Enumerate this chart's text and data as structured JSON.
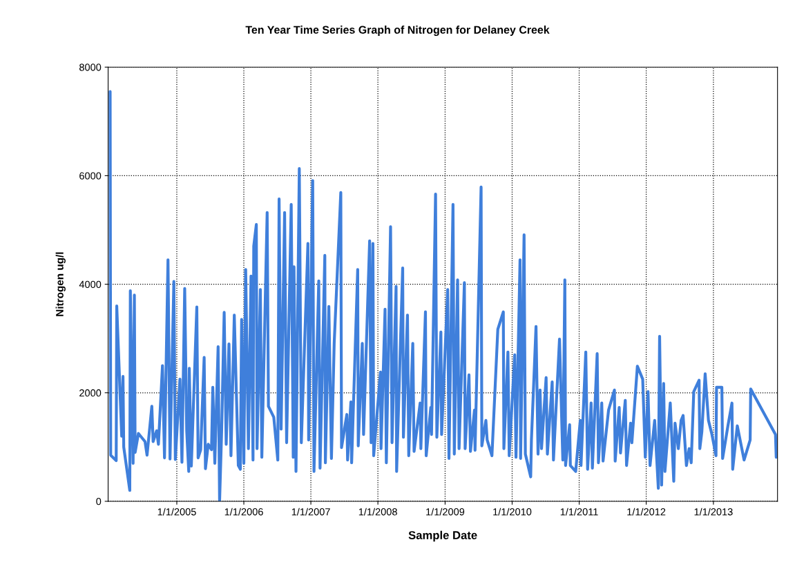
{
  "chart_data": {
    "type": "line",
    "title": "Ten Year Time Series Graph of Nitrogen for Delaney Creek",
    "xlabel": "Sample Date",
    "ylabel": "Nitrogen ug/l",
    "xlim": [
      "2003-12-24",
      "2013-12-16"
    ],
    "ylim": [
      0,
      8000
    ],
    "xticks": [
      {
        "value": "2005-01-01",
        "label": "1/1/2005"
      },
      {
        "value": "2006-01-01",
        "label": "1/1/2006"
      },
      {
        "value": "2007-01-01",
        "label": "1/1/2007"
      },
      {
        "value": "2008-01-01",
        "label": "1/1/2008"
      },
      {
        "value": "2009-01-01",
        "label": "1/1/2009"
      },
      {
        "value": "2010-01-01",
        "label": "1/1/2010"
      },
      {
        "value": "2011-01-01",
        "label": "1/1/2011"
      },
      {
        "value": "2012-01-01",
        "label": "1/1/2012"
      },
      {
        "value": "2013-01-01",
        "label": "1/1/2013"
      }
    ],
    "yticks": [
      0,
      2000,
      4000,
      6000,
      8000
    ],
    "grid": true,
    "marker": "none",
    "line_style": "solid",
    "series": [
      {
        "color": "#3f7fdb",
        "x": [
          "2004-01-04",
          "2004-01-07",
          "2004-02-06",
          "2004-02-09",
          "2004-03-07",
          "2004-03-14",
          "2004-03-18",
          "2004-04-20",
          "2004-04-23",
          "2004-05-08",
          "2004-05-15",
          "2004-05-19",
          "2004-06-06",
          "2004-07-12",
          "2004-07-23",
          "2004-08-18",
          "2004-08-25",
          "2004-09-13",
          "2004-09-23",
          "2004-10-15",
          "2004-10-26",
          "2004-11-14",
          "2004-11-25",
          "2004-12-16",
          "2004-12-24",
          "2005-01-18",
          "2005-01-29",
          "2005-02-13",
          "2005-02-24",
          "2005-03-07",
          "2005-03-10",
          "2005-03-21",
          "2005-04-20",
          "2005-04-27",
          "2005-05-11",
          "2005-05-30",
          "2005-06-06",
          "2005-06-21",
          "2005-07-09",
          "2005-07-16",
          "2005-07-27",
          "2005-08-14",
          "2005-08-22",
          "2005-09-02",
          "2005-09-16",
          "2005-09-27",
          "2005-10-12",
          "2005-10-23",
          "2005-11-10",
          "2005-12-02",
          "2005-12-13",
          "2005-12-20",
          "2006-01-01",
          "2006-01-11",
          "2006-01-26",
          "2006-02-09",
          "2006-02-20",
          "2006-02-24",
          "2006-03-10",
          "2006-03-14",
          "2006-04-01",
          "2006-04-09",
          "2006-05-08",
          "2006-05-15",
          "2006-06-13",
          "2006-07-05",
          "2006-07-12",
          "2006-07-23",
          "2006-08-11",
          "2006-08-22",
          "2006-09-16",
          "2006-09-27",
          "2006-10-01",
          "2006-10-12",
          "2006-10-30",
          "2006-11-10",
          "2006-12-16",
          "2006-12-20",
          "2007-01-11",
          "2007-01-18",
          "2007-02-13",
          "2007-02-20",
          "2007-03-18",
          "2007-03-21",
          "2007-04-09",
          "2007-04-23",
          "2007-05-08",
          "2007-06-13",
          "2007-06-17",
          "2007-07-16",
          "2007-07-20",
          "2007-08-07",
          "2007-08-11",
          "2007-09-13",
          "2007-09-16",
          "2007-10-08",
          "2007-10-15",
          "2007-11-17",
          "2007-11-25",
          "2007-12-05",
          "2007-12-09",
          "2008-01-15",
          "2008-01-18",
          "2008-02-09",
          "2008-02-16",
          "2008-03-10",
          "2008-03-18",
          "2008-04-09",
          "2008-04-12",
          "2008-05-15",
          "2008-05-19",
          "2008-06-10",
          "2008-06-17",
          "2008-07-09",
          "2008-07-16",
          "2008-08-18",
          "2008-08-22",
          "2008-09-16",
          "2008-09-20",
          "2008-10-15",
          "2008-10-19",
          "2008-11-10",
          "2008-11-17",
          "2008-12-09",
          "2008-12-13",
          "2009-01-15",
          "2009-01-22",
          "2009-02-13",
          "2009-02-20",
          "2009-03-10",
          "2009-03-18",
          "2009-04-16",
          "2009-04-20",
          "2009-05-11",
          "2009-05-19",
          "2009-06-10",
          "2009-06-13",
          "2009-07-16",
          "2009-07-20",
          "2009-08-11",
          "2009-08-18",
          "2009-09-13",
          "2009-10-15",
          "2009-11-14",
          "2009-11-17",
          "2009-12-09",
          "2009-12-16",
          "2010-01-15",
          "2010-01-22",
          "2010-02-13",
          "2010-02-16",
          "2010-03-07",
          "2010-03-14",
          "2010-04-12",
          "2010-04-16",
          "2010-05-11",
          "2010-05-22",
          "2010-06-02",
          "2010-06-10",
          "2010-07-05",
          "2010-07-12",
          "2010-08-07",
          "2010-08-14",
          "2010-09-16",
          "2010-10-04",
          "2010-10-15",
          "2010-10-19",
          "2010-11-10",
          "2010-11-14",
          "2010-12-13",
          "2011-01-07",
          "2011-01-11",
          "2011-02-06",
          "2011-02-16",
          "2011-03-07",
          "2011-03-14",
          "2011-04-09",
          "2011-04-16",
          "2011-05-04",
          "2011-05-11",
          "2011-06-10",
          "2011-07-12",
          "2011-07-16",
          "2011-08-07",
          "2011-08-14",
          "2011-09-09",
          "2011-09-16",
          "2011-10-08",
          "2011-10-15",
          "2011-11-14",
          "2011-12-13",
          "2011-12-27",
          "2012-01-11",
          "2012-01-22",
          "2012-02-16",
          "2012-03-07",
          "2012-03-14",
          "2012-03-25",
          "2012-04-05",
          "2012-04-12",
          "2012-05-11",
          "2012-05-30",
          "2012-06-06",
          "2012-06-24",
          "2012-07-09",
          "2012-07-20",
          "2012-08-07",
          "2012-08-22",
          "2012-09-02",
          "2012-09-16",
          "2012-10-15",
          "2012-10-19",
          "2012-10-30",
          "2012-11-17",
          "2012-12-05",
          "2012-12-24",
          "2013-01-15",
          "2013-01-18",
          "2013-02-16",
          "2013-02-20",
          "2013-03-21",
          "2013-04-12",
          "2013-04-16",
          "2013-05-11",
          "2013-06-17",
          "2013-07-20",
          "2013-07-23",
          "2013-12-05",
          "2013-12-09"
        ],
        "values": [
          7550,
          850,
          750,
          3600,
          1200,
          2300,
          1000,
          200,
          3880,
          700,
          3800,
          900,
          1250,
          1100,
          850,
          1750,
          1100,
          1300,
          1050,
          2500,
          800,
          4450,
          780,
          4050,
          770,
          2250,
          720,
          3920,
          1300,
          550,
          2450,
          650,
          3580,
          800,
          950,
          2650,
          600,
          1050,
          950,
          2100,
          700,
          2850,
          0,
          1280,
          3480,
          1050,
          2900,
          840,
          3430,
          660,
          590,
          3350,
          700,
          4270,
          970,
          4150,
          760,
          4700,
          5100,
          970,
          3900,
          810,
          5320,
          1750,
          1550,
          760,
          5570,
          1330,
          5320,
          1080,
          5470,
          810,
          4320,
          550,
          6130,
          1080,
          4750,
          1130,
          5910,
          550,
          4060,
          610,
          4530,
          710,
          3590,
          790,
          2910,
          5690,
          990,
          1600,
          760,
          1830,
          710,
          4270,
          1020,
          2910,
          1230,
          4800,
          1080,
          4750,
          840,
          2380,
          970,
          3540,
          710,
          5060,
          1080,
          3960,
          550,
          4300,
          1180,
          3430,
          840,
          2910,
          920,
          1810,
          970,
          3490,
          840,
          1730,
          1230,
          5660,
          1180,
          3120,
          1230,
          3900,
          790,
          5470,
          870,
          4080,
          970,
          4030,
          970,
          2330,
          920,
          1680,
          940,
          5790,
          1020,
          1490,
          1130,
          840,
          3170,
          3490,
          970,
          2750,
          840,
          2700,
          810,
          4450,
          790,
          4910,
          870,
          450,
          1130,
          3220,
          870,
          2050,
          970,
          2280,
          870,
          2200,
          760,
          2990,
          760,
          4080,
          660,
          1410,
          660,
          550,
          1490,
          660,
          2750,
          590,
          1810,
          610,
          2720,
          710,
          1810,
          740,
          1680,
          2050,
          740,
          1730,
          890,
          1860,
          660,
          1440,
          1080,
          2490,
          2250,
          810,
          2020,
          660,
          1490,
          240,
          3040,
          300,
          2170,
          550,
          1810,
          370,
          1440,
          970,
          1490,
          1580,
          660,
          970,
          710,
          2020,
          2230,
          970,
          1280,
          2350,
          1490,
          1230,
          840,
          2100,
          2100,
          790,
          1390,
          1810,
          590,
          1390,
          760,
          1130,
          2070,
          1230,
          810
        ]
      }
    ]
  }
}
